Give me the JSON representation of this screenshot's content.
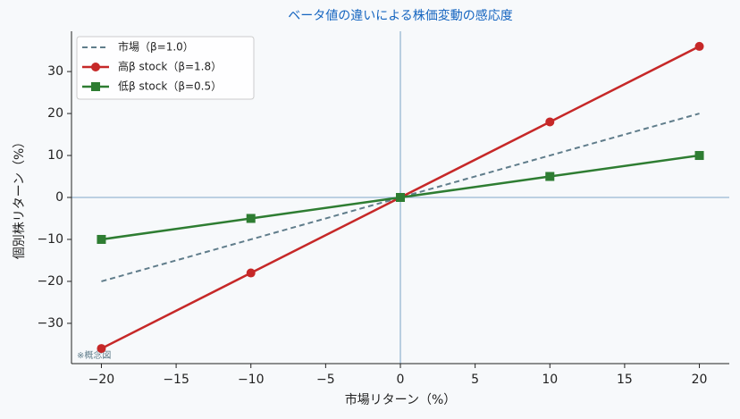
{
  "chart_data": {
    "type": "line",
    "title": "ベータ値の違いによる株価変動の感応度",
    "x_label": "市場リターン（%）",
    "y_label": "個別株リターン（%）",
    "annotation": "※概念図",
    "x": [
      -20,
      -10,
      0,
      10,
      20
    ],
    "series": [
      {
        "name": "市場（β=1.0）",
        "color": "#607d8b",
        "dash": true,
        "marker": "none",
        "values": [
          -20,
          -10,
          0,
          10,
          20
        ]
      },
      {
        "name": "高β stock（β=1.8）",
        "color": "#c62828",
        "dash": false,
        "marker": "circle",
        "values": [
          -36,
          -18,
          0,
          18,
          36
        ]
      },
      {
        "name": "低β stock（β=0.5）",
        "color": "#2e7d32",
        "dash": false,
        "marker": "square",
        "values": [
          -10,
          -5,
          0,
          5,
          10
        ]
      }
    ],
    "xlim": [
      -22,
      22
    ],
    "ylim": [
      -39.6,
      39.6
    ],
    "xticks": [
      {
        "value": -20,
        "label": "−20"
      },
      {
        "value": -15,
        "label": "−15"
      },
      {
        "value": -10,
        "label": "−10"
      },
      {
        "value": -5,
        "label": "−5"
      },
      0,
      5,
      10,
      15,
      20
    ],
    "yticks": [
      {
        "value": -30,
        "label": "−30"
      },
      {
        "value": -20,
        "label": "−20"
      },
      {
        "value": -10,
        "label": "−10"
      },
      0,
      10,
      20,
      30
    ],
    "reference_lines": {
      "x": 0,
      "y": 0,
      "color": "#5b8db8"
    },
    "legend": "upper left",
    "grid": false
  }
}
